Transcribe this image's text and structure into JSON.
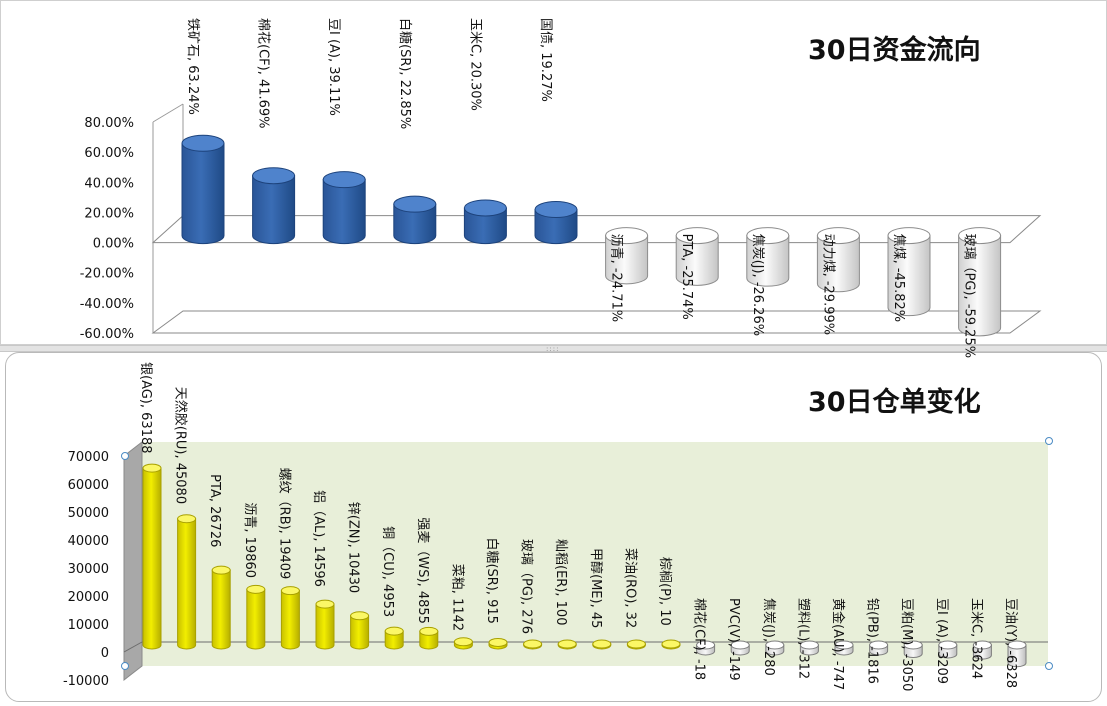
{
  "chart_data": [
    {
      "type": "bar",
      "title": "30日资金流向",
      "ylim": [
        -0.6,
        0.8
      ],
      "yticks": [
        0.8,
        0.6,
        0.4,
        0.2,
        0.0,
        -0.2,
        -0.4,
        -0.6
      ],
      "ytick_labels": [
        "80.00%",
        "60.00%",
        "40.00%",
        "20.00%",
        "0.00%",
        "-20.00%",
        "-40.00%",
        "-60.00%"
      ],
      "categories": [
        "铁矿石",
        "棉花(CF)",
        "豆I (A)",
        "白糖(SR)",
        "玉米C",
        "国债",
        "沥青",
        "PTA",
        "焦炭(J)",
        "动力煤",
        "焦煤",
        "玻璃（PG)"
      ],
      "values": [
        0.6324,
        0.4169,
        0.3911,
        0.2285,
        0.203,
        0.1927,
        -0.2471,
        -0.2574,
        -0.2626,
        -0.2999,
        -0.4582,
        -0.5925
      ],
      "data_labels": [
        "铁矿石, 63.24%",
        "棉花(CF), 41.69%",
        "豆I (A), 39.11%",
        "白糖(SR), 22.85%",
        "玉米C, 20.30%",
        "国债, 19.27%",
        "沥青, -24.71%",
        "PTA, -25.74%",
        "焦炭(J), -26.26%",
        "动力煤, -29.99%",
        "焦煤, -45.82%",
        "玻璃（PG), -59.25%"
      ],
      "colors": {
        "positive": "#3a6db5",
        "negative": "#f0f0f0"
      },
      "grid": false,
      "legend": "none"
    },
    {
      "type": "bar",
      "title": "30日仓单变化",
      "ylim": [
        -10000,
        70000
      ],
      "yticks": [
        70000,
        60000,
        50000,
        40000,
        30000,
        20000,
        10000,
        0,
        -10000
      ],
      "ytick_labels": [
        "70000",
        "60000",
        "50000",
        "40000",
        "30000",
        "20000",
        "10000",
        "0",
        "-10000"
      ],
      "categories": [
        "银(AG)",
        "天然胶(RU)",
        "PTA",
        "沥青",
        "螺纹（RB)",
        "铝（AL)",
        "锌(ZN)",
        "铜（CU)",
        "强麦（WS)",
        "菜粕",
        "白糖(SR)",
        "玻璃（PG)",
        "籼稻(ER)",
        "甲醇(ME)",
        "菜油(RO)",
        "棕榈(P)",
        "棉花(CF)",
        "PVC(V)",
        "焦炭(J)",
        "塑料(L)",
        "黄金(AU)",
        "铅(PB)",
        "豆粕(M)",
        "豆I (A)",
        "玉米C",
        "豆油(Y)"
      ],
      "values": [
        63188,
        45080,
        26726,
        19860,
        19409,
        14596,
        10430,
        4953,
        4855,
        1142,
        915,
        276,
        100,
        45,
        32,
        10,
        -18,
        -149,
        -280,
        -312,
        -747,
        -1816,
        -3050,
        -3209,
        -3624,
        -6328
      ],
      "data_labels": [
        "银(AG), 63188",
        "天然胶(RU), 45080",
        "PTA, 26726",
        "沥青, 19860",
        "螺纹（RB), 19409",
        "铝（AL), 14596",
        "锌(ZN), 10430",
        "铜（CU), 4953",
        "强麦（WS), 4855",
        "菜粕, 1142",
        "白糖(SR), 915",
        "玻璃（PG), 276",
        "籼稻(ER), 100",
        "甲醇(ME), 45",
        "菜油(RO), 32",
        "棕榈(P), 10",
        "棉花(CF), -18",
        "PVC(V), -149",
        "焦炭(J), -280",
        "塑料(L), -312",
        "黄金(AU), -747",
        "铅(PB), -1816",
        "豆粕(M), -3050",
        "豆I (A), -3209",
        "玉米C, -3624",
        "豆油(Y), -6328"
      ],
      "colors": {
        "positive": "#f2ee00",
        "negative": "#ececec",
        "plot_background": "#e8efd9"
      },
      "grid": false,
      "legend": "none"
    }
  ]
}
